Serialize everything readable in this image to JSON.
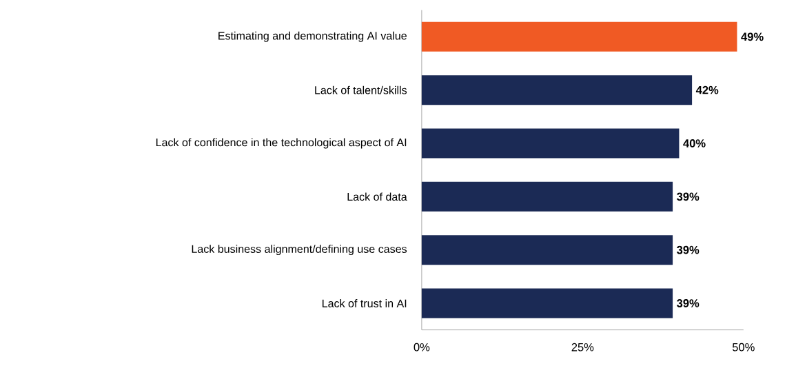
{
  "chart_data": {
    "type": "bar",
    "orientation": "horizontal",
    "categories": [
      "Estimating and demonstrating AI value",
      "Lack of talent/skills",
      "Lack of confidence in the technological aspect of AI",
      "Lack of data",
      "Lack business alignment/defining use cases",
      "Lack of trust in AI"
    ],
    "values": [
      49,
      42,
      40,
      39,
      39,
      39
    ],
    "colors": [
      "#f05a24",
      "#1b2a55",
      "#1b2a55",
      "#1b2a55",
      "#1b2a55",
      "#1b2a55"
    ],
    "value_labels": [
      "49%",
      "42%",
      "40%",
      "39%",
      "39%",
      "39%"
    ],
    "xlim": [
      0,
      50
    ],
    "xticks": [
      {
        "value": 0,
        "label": "0%"
      },
      {
        "value": 25,
        "label": "25%"
      },
      {
        "value": 50,
        "label": "50%"
      }
    ],
    "grid": false
  }
}
